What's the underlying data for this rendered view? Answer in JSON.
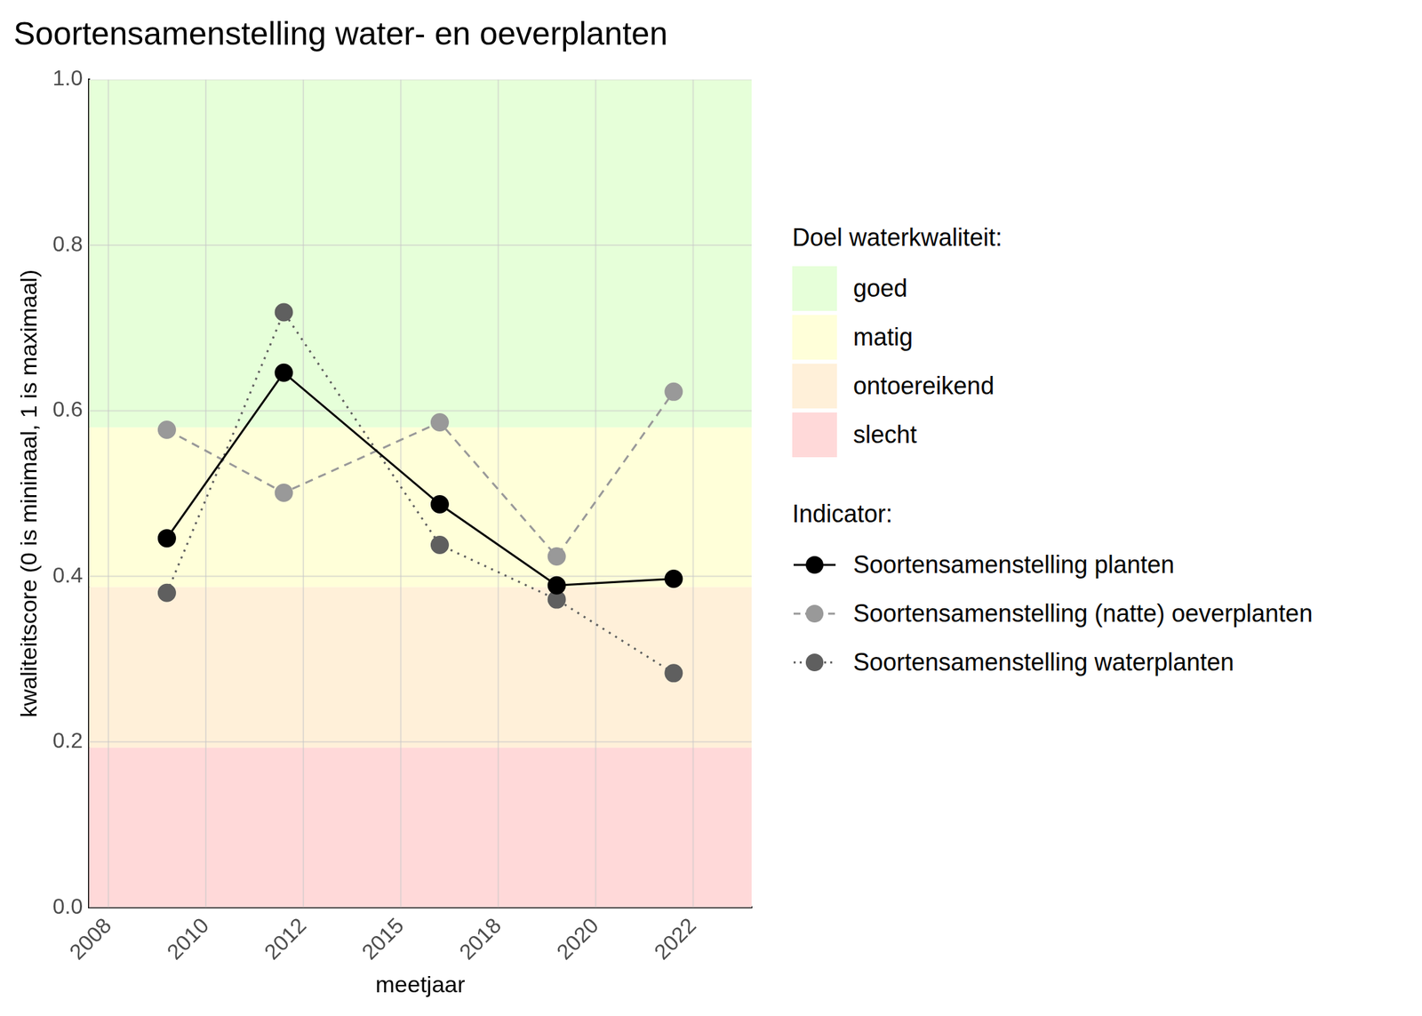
{
  "chart_data": {
    "type": "line",
    "title": "Soortensamenstelling water- en oeverplanten",
    "x_label": "meetjaar",
    "y_label": "kwaliteitscore (0 is minimaal, 1 is maximaal)",
    "x": [
      2009,
      2012,
      2016,
      2019,
      2022
    ],
    "series": [
      {
        "name": "Soortensamenstelling planten",
        "color": "#000000",
        "marker": "circle",
        "line_style": "solid",
        "values": [
          0.446,
          0.646,
          0.487,
          0.389,
          0.397
        ]
      },
      {
        "name": "Soortensamenstelling (natte) oeverplanten",
        "color": "#999999",
        "marker": "circle",
        "line_style": "dashed",
        "values": [
          0.577,
          0.501,
          0.586,
          0.424,
          0.623
        ]
      },
      {
        "name": "Soortensamenstelling waterplanten",
        "color": "#5f5f5f",
        "marker": "circle",
        "line_style": "dotted",
        "values": [
          0.38,
          0.719,
          0.438,
          0.372,
          0.283
        ]
      }
    ],
    "xlim": [
      2007,
      2024
    ],
    "xticks": [
      {
        "value": 2007.5,
        "label": "2008"
      },
      2010,
      {
        "value": 2012.5,
        "label": "2012"
      },
      2015,
      {
        "value": 2017.5,
        "label": "2018"
      },
      2020,
      {
        "value": 2022.5,
        "label": "2022"
      }
    ],
    "ylim": [
      0,
      1
    ],
    "yticks": [
      {
        "value": 0,
        "label": "0.0"
      },
      0.2,
      0.4,
      0.6,
      0.8,
      {
        "value": 1,
        "label": "1.0"
      }
    ],
    "grid": true,
    "legend": "right",
    "bands_title": "Doel waterkwaliteit:",
    "bands": [
      {
        "name": "goed",
        "from": 0.58,
        "to": 1,
        "color": "#e6ffd9"
      },
      {
        "name": "matig",
        "from": 0.387,
        "to": 0.58,
        "color": "#ffffd9"
      },
      {
        "name": "ontoereikend",
        "from": 0.193,
        "to": 0.387,
        "color": "#fff0d9"
      },
      {
        "name": "slecht",
        "from": 0,
        "to": 0.193,
        "color": "#ffd9d9"
      }
    ],
    "legend_title": "Indicator:"
  }
}
